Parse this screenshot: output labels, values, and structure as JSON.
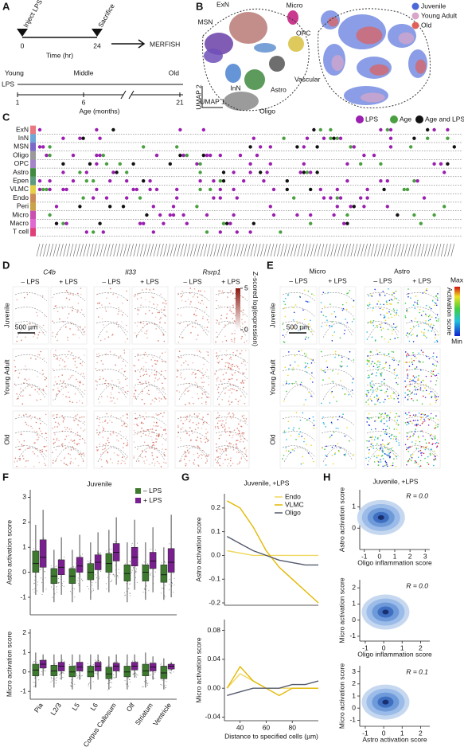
{
  "panels": {
    "A": {
      "letter": "A",
      "inject": "Inject LPS",
      "sacrifice": "Sacrifice",
      "time_ticks": [
        "0",
        "24"
      ],
      "time_label": "Time (hr)",
      "method": "MERFISH",
      "ages": [
        "Young",
        "Middle",
        "Old"
      ],
      "lps": "LPS",
      "age_ticks": [
        "1",
        "6",
        "21"
      ],
      "age_label": "Age (months)"
    },
    "B": {
      "letter": "B",
      "clusters": [
        "ExN",
        "Micro",
        "MSN",
        "OPC",
        "InN",
        "Vascular",
        "Astro",
        "Oligo"
      ],
      "umap_y": "UMAP 2",
      "umap_x": "UMAP 1",
      "legend": [
        {
          "name": "Juvenile",
          "color": "#4b68d8"
        },
        {
          "name": "Young Adult",
          "color": "#d9a6c9"
        },
        {
          "name": "Old",
          "color": "#e0605a"
        }
      ]
    },
    "C": {
      "letter": "C",
      "legend": [
        {
          "name": "LPS",
          "color": "#9b1fb0"
        },
        {
          "name": "Age",
          "color": "#4aa040"
        },
        {
          "name": "Age and LPS",
          "color": "#111111"
        }
      ],
      "rows": [
        {
          "name": "ExN",
          "color": "#e8797e"
        },
        {
          "name": "InN",
          "color": "#6ea6d8"
        },
        {
          "name": "MSN",
          "color": "#7b68c8"
        },
        {
          "name": "Oligo",
          "color": "#9a9a9a"
        },
        {
          "name": "OPC",
          "color": "#a585c8"
        },
        {
          "name": "Astro",
          "color": "#3f8a3f"
        },
        {
          "name": "Epen",
          "color": "#5c9c7c"
        },
        {
          "name": "VLMC",
          "color": "#e5d04a"
        },
        {
          "name": "Endo",
          "color": "#c98b5a"
        },
        {
          "name": "Peri",
          "color": "#c9a24a"
        },
        {
          "name": "Micro",
          "color": "#c94fb0"
        },
        {
          "name": "Macro",
          "color": "#e06ad0"
        },
        {
          "name": "T cell",
          "color": "#e0407a"
        }
      ]
    },
    "D": {
      "letter": "D",
      "genes": [
        "C4b",
        "Il33",
        "Rsrp1"
      ],
      "conditions": [
        "– LPS",
        "+ LPS"
      ],
      "ages": [
        "Juvenile",
        "Young Adult",
        "Old"
      ],
      "scale": "500 µm",
      "colorbar": {
        "label": "Z-scored log(expression)",
        "ticks": [
          0,
          5
        ]
      }
    },
    "E": {
      "letter": "E",
      "cell_types": [
        "Micro",
        "Astro"
      ],
      "conditions": [
        "– LPS",
        "+ LPS"
      ],
      "ages": [
        "Juvenile",
        "Young Adult",
        "Old"
      ],
      "scale": "500 µm",
      "colorbar": {
        "label": "Activation score",
        "max": "Max",
        "min": "Min"
      }
    },
    "F": {
      "letter": "F"
    },
    "G": {
      "letter": "G"
    },
    "H": {
      "letter": "H"
    }
  },
  "chart_data": [
    {
      "type": "box",
      "title": "Juvenile",
      "y_label": "Astro activation score",
      "ylim": [
        -1.7,
        3.3
      ],
      "yticks": [
        -1,
        0,
        1,
        2,
        3
      ],
      "legend": "top-right",
      "series": [
        {
          "name": "– LPS",
          "color": "#3d7a2e",
          "q1": [
            0,
            -0.45,
            -0.45,
            -0.3,
            0,
            -0.35,
            -0.35,
            -0.4
          ],
          "median": [
            0.35,
            -0.15,
            -0.15,
            0,
            0.35,
            -0.05,
            0,
            -0.1
          ],
          "q3": [
            0.85,
            0.15,
            0.15,
            0.35,
            0.75,
            0.3,
            0.3,
            0.3
          ],
          "low": [
            -0.9,
            -1.2,
            -1.2,
            -1.1,
            -0.8,
            -1.2,
            -1.1,
            -1.1
          ],
          "high": [
            1.9,
            0.9,
            0.9,
            1.2,
            1.7,
            1.2,
            1.2,
            1
          ]
        },
        {
          "name": "+ LPS",
          "color": "#7a1f8f",
          "q1": [
            0.2,
            -0.1,
            0,
            0.1,
            0.45,
            0.25,
            0.15,
            0
          ],
          "median": [
            0.6,
            0.2,
            0.25,
            0.4,
            0.8,
            0.6,
            0.45,
            0.4
          ],
          "q3": [
            1.3,
            0.5,
            0.6,
            0.7,
            1.15,
            1,
            0.8,
            0.95
          ],
          "low": [
            -0.8,
            -0.9,
            -0.8,
            -0.7,
            -0.5,
            -0.7,
            -0.8,
            -1
          ],
          "high": [
            2.5,
            1.4,
            1.5,
            1.6,
            2.2,
            2.1,
            1.8,
            2.3
          ]
        }
      ]
    },
    {
      "type": "box",
      "y_label": "Micro activation score",
      "categories": [
        "Pia",
        "L2/3",
        "L5",
        "L6",
        "Corpus Callosum",
        "Olf",
        "Striatum",
        "Ventricle"
      ],
      "ylim": [
        -1.4,
        2.2
      ],
      "yticks": [
        -1,
        0,
        1,
        2
      ],
      "series": [
        {
          "color": "#3d7a2e",
          "q1": [
            -0.2,
            -0.2,
            -0.25,
            -0.25,
            -0.35,
            -0.25,
            -0.2,
            -0.35
          ],
          "median": [
            0.1,
            0.05,
            0,
            0,
            -0.1,
            0,
            0.05,
            -0.05
          ],
          "q3": [
            0.4,
            0.35,
            0.3,
            0.3,
            0.25,
            0.3,
            0.4,
            0.3
          ],
          "low": [
            -0.8,
            -0.8,
            -0.9,
            -0.9,
            -0.9,
            -0.9,
            -0.8,
            -0.9
          ],
          "high": [
            1,
            0.9,
            0.9,
            0.9,
            0.8,
            0.9,
            1,
            0.7
          ]
        },
        {
          "color": "#7a1f8f",
          "q1": [
            0.2,
            0.05,
            0.05,
            0.05,
            0.05,
            0.1,
            0.05,
            0.15
          ],
          "median": [
            0.4,
            0.3,
            0.25,
            0.3,
            0.3,
            0.3,
            0.25,
            0.3
          ],
          "q3": [
            0.6,
            0.5,
            0.5,
            0.5,
            0.45,
            0.5,
            0.45,
            0.4
          ],
          "low": [
            -0.2,
            -0.4,
            -0.4,
            -0.4,
            -0.3,
            -0.3,
            -0.4,
            0.05
          ],
          "high": [
            0.9,
            0.9,
            0.9,
            0.9,
            0.9,
            0.9,
            0.8,
            0.5
          ]
        }
      ]
    },
    {
      "type": "line",
      "title": "Juvenile, +LPS",
      "y_label": "Astro activation score",
      "x": [
        30,
        40,
        50,
        60,
        70,
        80,
        90,
        100
      ],
      "xlim": [
        28,
        100
      ],
      "ylim": [
        -0.21,
        0.26
      ],
      "yticks": [
        -0.2,
        -0.1,
        {
          "value": 0,
          "label": "0.0"
        },
        0.1,
        0.2
      ],
      "legend": "top-right",
      "series": [
        {
          "name": "Endo",
          "color": "#f0d860",
          "values": [
            0.02,
            0.01,
            0,
            0,
            0,
            0,
            0,
            0
          ]
        },
        {
          "name": "VLMC",
          "color": "#e3b800",
          "values": [
            0.23,
            0.2,
            0.12,
            0.02,
            -0.05,
            -0.1,
            -0.15,
            -0.2
          ]
        },
        {
          "name": "Oligo",
          "color": "#555b6e",
          "values": [
            0.08,
            0.05,
            0.02,
            0,
            -0.02,
            -0.03,
            -0.04,
            -0.04
          ]
        }
      ]
    },
    {
      "type": "line",
      "y_label": "Micro activation score",
      "x_label": "Distance to specified cells (µm)",
      "x": [
        30,
        40,
        50,
        60,
        70,
        80,
        90,
        100
      ],
      "xlim": [
        28,
        100
      ],
      "xticks": [
        40,
        60,
        80
      ],
      "ylim": [
        -0.045,
        0.095
      ],
      "yticks": [
        -0.04,
        {
          "value": 0,
          "label": "0.00"
        },
        0.04,
        0.08
      ],
      "series": [
        {
          "color": "#f0d860",
          "values": [
            0,
            0.02,
            0.01,
            0,
            0,
            0,
            0,
            0
          ]
        },
        {
          "color": "#e3b800",
          "values": [
            0,
            0.03,
            0.01,
            0,
            -0.01,
            0,
            0,
            0
          ]
        },
        {
          "color": "#555b6e",
          "values": [
            -0.01,
            -0.005,
            0,
            0,
            0,
            0.005,
            0.005,
            0.01
          ]
        }
      ]
    },
    {
      "type": "density",
      "title": "Juvenile, +LPS",
      "annotation": "R = 0.0",
      "x_label": "Oligo inflammation score",
      "y_label": "Astro activation score",
      "xlim": [
        -1.3,
        3.3
      ],
      "xticks": [
        -1,
        0,
        1,
        2,
        3
      ],
      "ylim": [
        -1,
        1.8
      ],
      "yticks": [
        0,
        1
      ]
    },
    {
      "type": "density",
      "annotation": "R = 0.0",
      "x_label": "Oligo inflammation score",
      "y_label": "Micro activation score",
      "xlim": [
        -1.3,
        2.5
      ],
      "xticks": [
        -1,
        0,
        1,
        2
      ],
      "ylim": [
        -1.3,
        2.5
      ],
      "yticks": [
        -1,
        0,
        1,
        2
      ]
    },
    {
      "type": "density",
      "annotation": "R = 0.1",
      "x_label": "Astro activation score",
      "y_label": "Micro activation score",
      "xlim": [
        -1.3,
        2.5
      ],
      "xticks": [
        -1,
        0,
        1,
        2
      ],
      "ylim": [
        -1.5,
        3.5
      ],
      "yticks": [
        -1,
        0,
        1,
        2,
        3
      ]
    }
  ]
}
